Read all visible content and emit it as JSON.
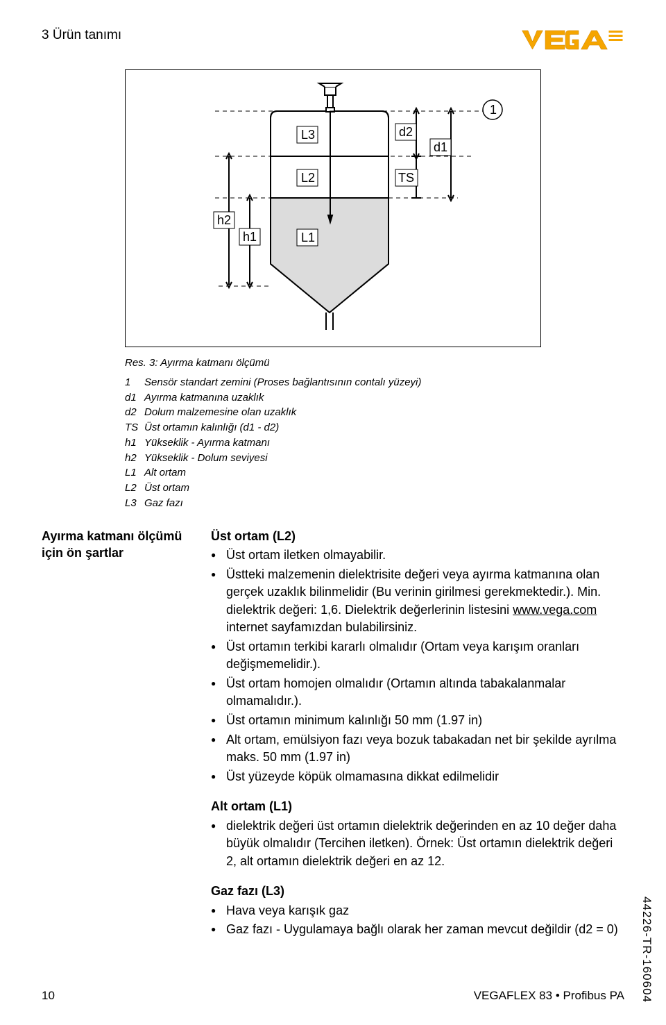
{
  "header": {
    "section": "3 Ürün tanımı"
  },
  "logo": {
    "text": "VEGA",
    "color": "#f5a500",
    "stroke": "#c97f00"
  },
  "figure": {
    "labels": {
      "L1": "L1",
      "L2": "L2",
      "L3": "L3",
      "TS": "TS",
      "d1": "d1",
      "d2": "d2",
      "h1": "h1",
      "h2": "h2",
      "callout1": "1"
    },
    "colors": {
      "stroke": "#000000",
      "fill_liquid": "#dcdcdc",
      "fill_upper": "#ffffff",
      "dash": "#000000"
    }
  },
  "caption": {
    "title": "Res. 3: Ayırma katmanı ölçümü",
    "lines": [
      {
        "k": "1",
        "t": "Sensör standart zemini (Proses bağlantısının contalı yüzeyi)"
      },
      {
        "k": "d1",
        "t": "Ayırma katmanına uzaklık"
      },
      {
        "k": "d2",
        "t": "Dolum malzemesine olan uzaklık"
      },
      {
        "k": "TS",
        "t": "Üst ortamın kalınlığı (d1 - d2)"
      },
      {
        "k": "h1",
        "t": "Yükseklik - Ayırma katmanı"
      },
      {
        "k": "h2",
        "t": "Yükseklik - Dolum seviyesi"
      },
      {
        "k": "L1",
        "t": "Alt ortam"
      },
      {
        "k": "L2",
        "t": "Üst ortam"
      },
      {
        "k": "L3",
        "t": "Gaz fazı"
      }
    ]
  },
  "side": {
    "title": "Ayırma katmanı ölçümü için ön şartlar"
  },
  "sections": {
    "ust": {
      "head": "Üst ortam (L2)",
      "items": [
        "Üst ortam iletken olmayabilir.",
        "Üstteki malzemenin dielektrisite değeri veya ayırma katmanına olan gerçek uzaklık bilinmelidir (Bu verinin girilmesi gerekmektedir.). Min. dielektrik değeri: 1,6. Dielektrik değerlerinin listesini www.vega.com internet sayfamızdan bulabilirsiniz.",
        "Üst ortamın terkibi kararlı olmalıdır (Ortam veya karışım oranları değişmemelidir.).",
        "Üst ortam homojen olmalıdır (Ortamın altında tabakalanmalar olmamalıdır.).",
        "Üst ortamın minimum kalınlığı 50 mm (1.97 in)",
        "Alt ortam, emülsiyon fazı veya bozuk tabakadan net bir şekilde ayrılma maks. 50 mm (1.97 in)",
        "Üst yüzeyde köpük olmamasına dikkat edilmelidir"
      ],
      "link_text": "www.vega.com"
    },
    "alt": {
      "head": "Alt ortam (L1)",
      "items": [
        "dielektrik değeri üst ortamın dielektrik değerinden en az 10 değer daha büyük olmalıdır (Tercihen iletken). Örnek: Üst ortamın dielektrik değeri 2, alt ortamın dielektrik değeri en az 12."
      ]
    },
    "gaz": {
      "head": "Gaz fazı (L3)",
      "items": [
        "Hava veya karışık gaz",
        "Gaz fazı - Uygulamaya bağlı olarak her zaman mevcut değildir (d2 = 0)"
      ]
    }
  },
  "footer": {
    "page": "10",
    "doc": "VEGAFLEX 83 • Profibus PA"
  },
  "side_code": "44226-TR-160604"
}
